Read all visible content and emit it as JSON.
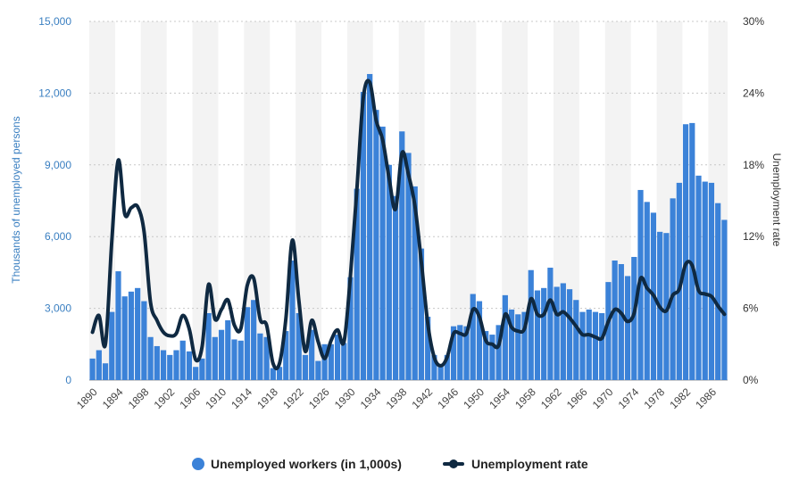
{
  "chart_data": {
    "type": "bar+line",
    "title": "",
    "x": [
      "1890",
      "1891",
      "1892",
      "1893",
      "1894",
      "1895",
      "1896",
      "1897",
      "1898",
      "1899",
      "1900",
      "1901",
      "1902",
      "1903",
      "1904",
      "1905",
      "1906",
      "1907",
      "1908",
      "1909",
      "1910",
      "1911",
      "1912",
      "1913",
      "1914",
      "1915",
      "1916",
      "1917",
      "1918",
      "1919",
      "1920",
      "1921",
      "1922",
      "1923",
      "1924",
      "1925",
      "1926",
      "1927",
      "1928",
      "1929",
      "1930",
      "1931",
      "1932",
      "1933",
      "1934",
      "1935",
      "1936",
      "1937",
      "1938",
      "1939",
      "1940",
      "1941",
      "1942",
      "1943",
      "1944",
      "1945",
      "1946",
      "1947",
      "1948",
      "1949",
      "1950",
      "1951",
      "1952",
      "1953",
      "1954",
      "1955",
      "1956",
      "1957",
      "1958",
      "1959",
      "1960",
      "1961",
      "1962",
      "1963",
      "1964",
      "1965",
      "1966",
      "1967",
      "1968",
      "1969",
      "1970",
      "1971",
      "1972",
      "1973",
      "1974",
      "1975",
      "1976",
      "1977",
      "1978",
      "1979",
      "1980",
      "1981",
      "1982",
      "1983",
      "1984",
      "1985",
      "1986",
      "1987",
      "1988"
    ],
    "x_tick_labels": [
      "1890",
      "1894",
      "1898",
      "1902",
      "1906",
      "1910",
      "1914",
      "1918",
      "1922",
      "1926",
      "1930",
      "1934",
      "1938",
      "1942",
      "1946",
      "1950",
      "1954",
      "1958",
      "1962",
      "1966",
      "1970",
      "1974",
      "1978",
      "1982",
      "1986"
    ],
    "series": [
      {
        "name": "Unemployed workers (in 1,000s)",
        "axis": "left",
        "kind": "bar",
        "color": "#3b82d8",
        "values": [
          900,
          1250,
          700,
          2850,
          4550,
          3500,
          3700,
          3850,
          3300,
          1800,
          1420,
          1250,
          1050,
          1250,
          1650,
          1200,
          550,
          900,
          2800,
          1800,
          2100,
          2500,
          1700,
          1650,
          3050,
          3350,
          1950,
          1800,
          500,
          550,
          2050,
          5000,
          2800,
          1050,
          2100,
          800,
          1500,
          1500,
          1900,
          1550,
          4300,
          8000,
          12050,
          12800,
          11300,
          10600,
          9000,
          7700,
          10400,
          9500,
          8100,
          5500,
          2650,
          1050,
          650,
          1050,
          2250,
          2300,
          2250,
          3600,
          3300,
          2050,
          1900,
          2300,
          3550,
          2950,
          2750,
          2850,
          4600,
          3750,
          3850,
          4700,
          3900,
          4050,
          3800,
          3350,
          2850,
          2950,
          2850,
          2800,
          4100,
          5000,
          4850,
          4350,
          5150,
          7950,
          7450,
          7000,
          6200,
          6150,
          7600,
          8250,
          10700,
          10750,
          8550,
          8300,
          8250,
          7400,
          6700
        ]
      },
      {
        "name": "Unemployment rate",
        "axis": "right",
        "kind": "line",
        "color": "#0f2941",
        "values": [
          4.0,
          5.4,
          3.0,
          11.7,
          18.4,
          13.9,
          14.4,
          14.5,
          12.4,
          6.5,
          5.0,
          4.0,
          3.7,
          3.9,
          5.4,
          4.3,
          1.7,
          2.8,
          8.0,
          5.1,
          5.9,
          6.7,
          4.6,
          4.3,
          7.9,
          8.5,
          5.1,
          4.6,
          1.4,
          1.4,
          5.2,
          11.7,
          6.7,
          2.4,
          5.0,
          3.2,
          1.8,
          3.3,
          4.2,
          3.2,
          8.7,
          15.9,
          23.6,
          24.9,
          21.7,
          20.1,
          16.9,
          14.3,
          19.0,
          17.2,
          14.6,
          9.9,
          4.7,
          1.9,
          1.2,
          1.9,
          3.9,
          3.9,
          3.9,
          5.9,
          5.3,
          3.3,
          3.0,
          2.9,
          5.5,
          4.4,
          4.1,
          4.3,
          6.8,
          5.5,
          5.5,
          6.7,
          5.5,
          5.7,
          5.2,
          4.5,
          3.8,
          3.8,
          3.6,
          3.5,
          4.9,
          5.9,
          5.6,
          4.9,
          5.6,
          8.5,
          7.7,
          7.1,
          6.1,
          5.8,
          7.1,
          7.6,
          9.7,
          9.6,
          7.5,
          7.2,
          7.0,
          6.2,
          5.5
        ]
      }
    ],
    "y_left": {
      "label": "Thousands of unemployed persons",
      "range": [
        0,
        15000
      ],
      "ticks": [
        "0",
        "3,000",
        "6,000",
        "9,000",
        "12,000",
        "15,000"
      ]
    },
    "y_right": {
      "label": "Unemployment rate",
      "range": [
        0,
        30
      ],
      "ticks": [
        "0%",
        "6%",
        "12%",
        "18%",
        "24%",
        "30%"
      ]
    },
    "grid": true,
    "alternating_column_bands": true,
    "legend_position": "bottom-center"
  },
  "legend": {
    "bars_label": "Unemployed workers (in 1,000s)",
    "line_label": "Unemployment rate"
  },
  "colors": {
    "bar": "#3b82d8",
    "line": "#0f2941",
    "band": "#f3f3f3",
    "grid": "#c8c8c8",
    "left_axis_text": "#3a7fc1"
  }
}
